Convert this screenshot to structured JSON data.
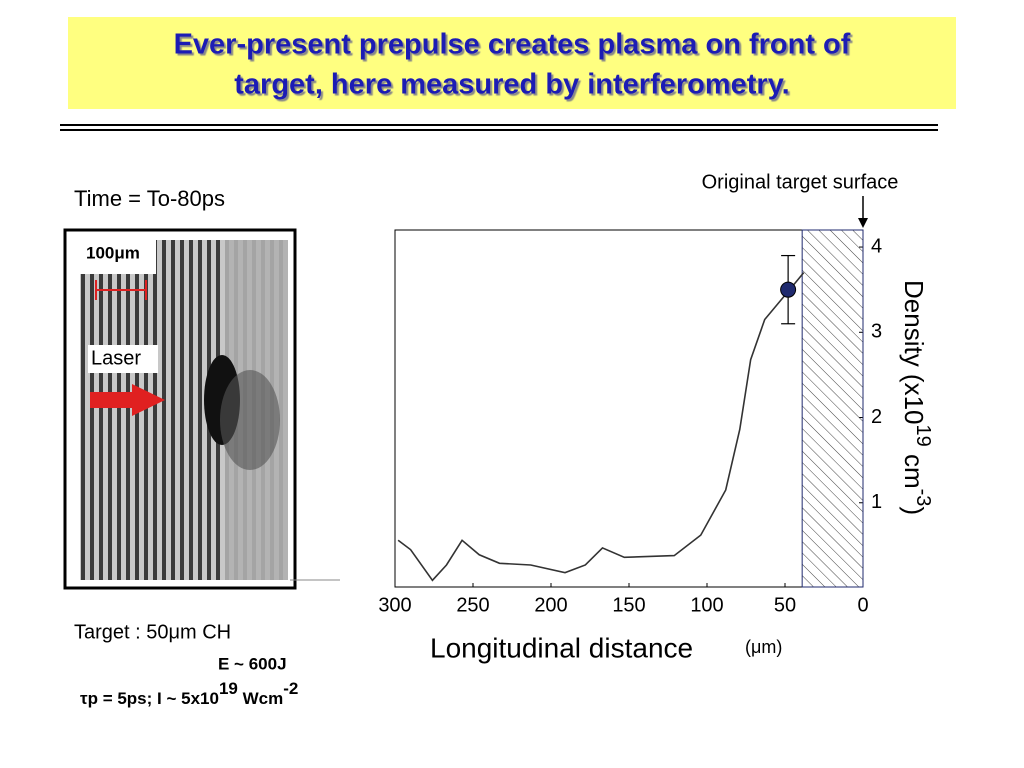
{
  "slide": {
    "title": [
      "Ever-present prepulse creates plasma on front of",
      "target, here measured by interferometry."
    ],
    "time_label": "Time = To-80ps",
    "scale_label": "100μm",
    "laser_label": "Laser",
    "target": "Target : 50μm CH",
    "energy": "E ~ 600J",
    "pulse": [
      "τp = 5ps;  I ~ 5x10",
      "19",
      " Wcm",
      "-2"
    ]
  },
  "chart_data": {
    "type": "line",
    "annotation": "Original target surface",
    "xlabel": "Longitudinal distance",
    "xunit": "(μm)",
    "ylabel": [
      "Density (x10",
      "19",
      " cm",
      "-3",
      ")"
    ],
    "x": [
      298,
      290,
      276,
      267,
      257,
      246,
      233,
      213,
      191,
      178,
      167,
      153,
      121,
      104,
      88,
      79,
      72,
      63,
      47,
      38
    ],
    "values": [
      0.56,
      0.45,
      0.09,
      0.27,
      0.56,
      0.39,
      0.29,
      0.27,
      0.18,
      0.27,
      0.47,
      0.36,
      0.38,
      0.62,
      1.15,
      1.86,
      2.68,
      3.15,
      3.5,
      3.7
    ],
    "color": "#333333",
    "point": {
      "x": 48,
      "y": 3.5,
      "error": 0.4,
      "color": "#1f2a6e"
    },
    "target_region": [
      39,
      0
    ],
    "xlim": [
      300,
      0
    ],
    "ylim": [
      0,
      4.2
    ],
    "xticks": [
      300,
      250,
      200,
      150,
      100,
      50,
      0
    ],
    "yticks": [
      1,
      2,
      3,
      4
    ]
  }
}
